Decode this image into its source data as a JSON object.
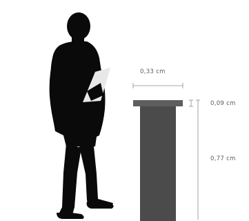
{
  "dimensions": {
    "width_label": "0,33 cm",
    "top_height_label": "0,09 cm",
    "body_height_label": "0,77 cm"
  },
  "colors": {
    "background": "#ffffff",
    "silhouette": "#0a0a0a",
    "clipboard": "#e8e8e8",
    "lectern_body": "#4b4b4b",
    "lectern_top": "#5e5e5e",
    "dimension_line": "#8a8a8a",
    "dimension_text": "#5a5a5a"
  },
  "icons": {
    "person": "person-with-clipboard-silhouette",
    "lectern": "lectern-podium"
  }
}
